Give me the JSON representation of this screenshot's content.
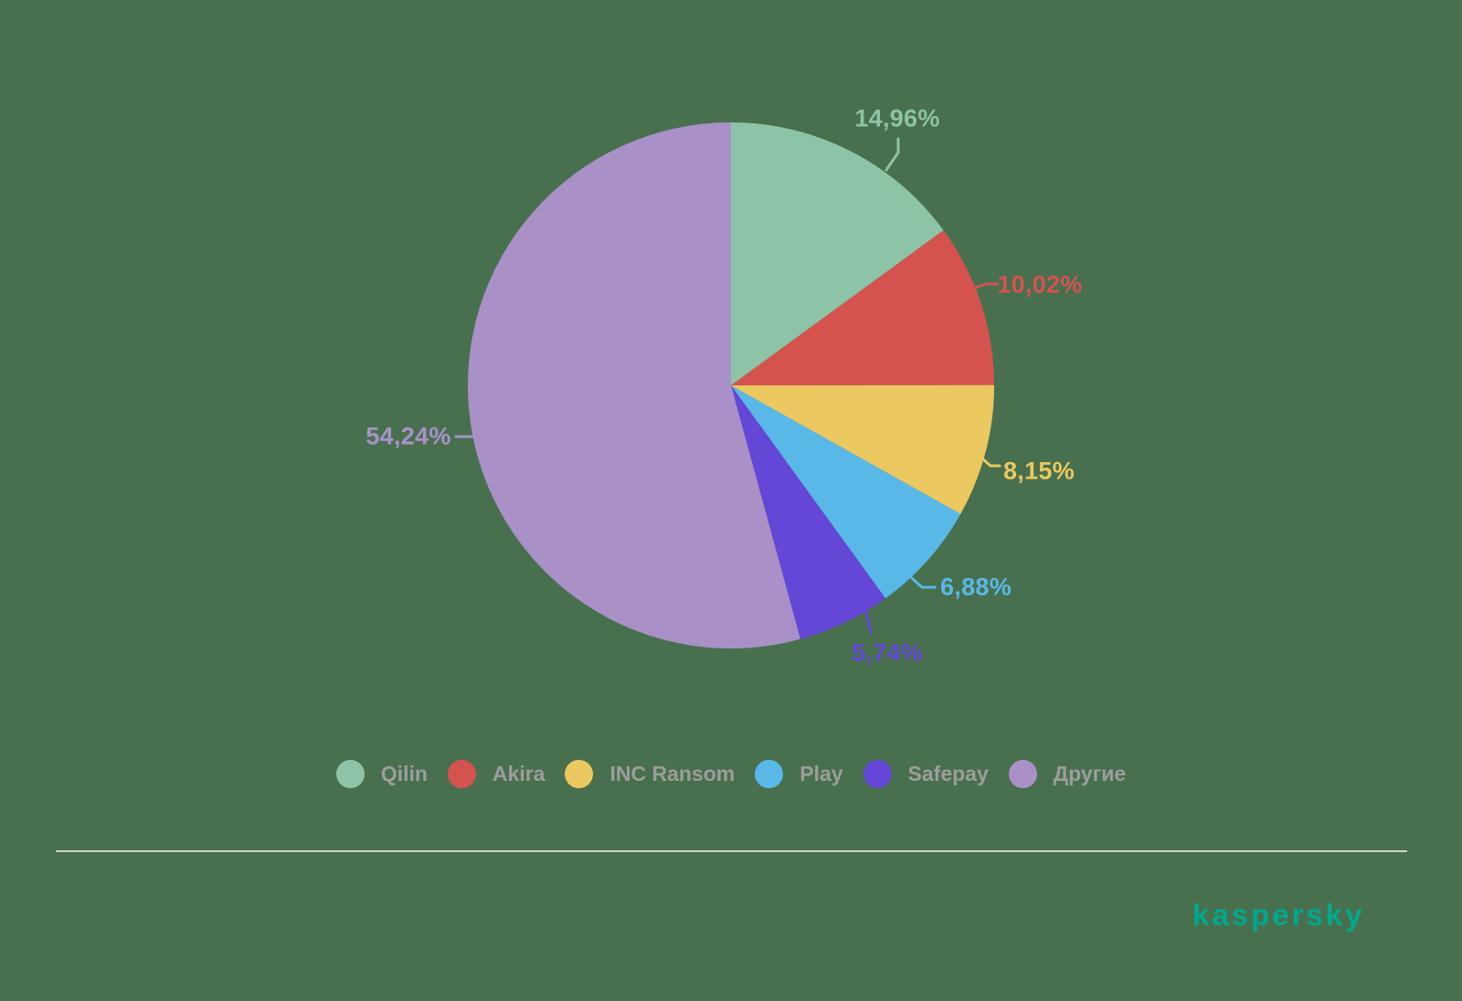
{
  "page": {
    "background_color": "#48704e"
  },
  "chart_data": {
    "type": "pie",
    "title": "",
    "legend_position": "bottom",
    "start_angle": "top, clockwise",
    "slices": [
      {
        "label": "Qilin",
        "value": 14.96,
        "value_label": "14,96%",
        "color": "#8dc3a6"
      },
      {
        "label": "Akira",
        "value": 10.02,
        "value_label": "10,02%",
        "color": "#d5534f"
      },
      {
        "label": "INC Ransom",
        "value": 8.15,
        "value_label": "8,15%",
        "color": "#ecc860"
      },
      {
        "label": "Play",
        "value": 6.88,
        "value_label": "6,88%",
        "color": "#59b8e8"
      },
      {
        "label": "Safepay",
        "value": 5.74,
        "value_label": "5,74%",
        "color": "#6447d6"
      },
      {
        "label": "Другие",
        "value": 54.24,
        "value_label": "54,24%",
        "color": "#a991c8"
      }
    ],
    "legend_text_color": "#9d9d9d"
  },
  "footer": {
    "divider_color": "#d1d1d1",
    "logo_text": "kaspersky",
    "logo_color": "#00a88e"
  }
}
